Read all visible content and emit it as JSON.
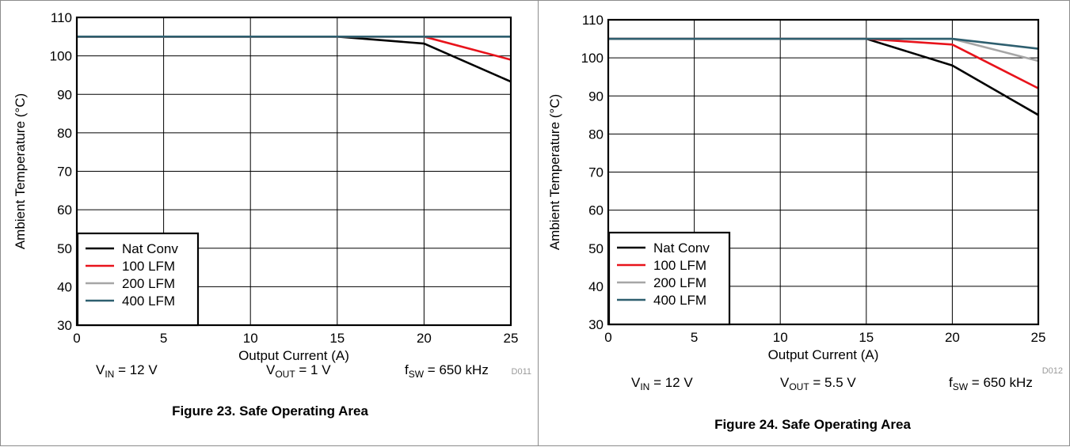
{
  "chart_data": [
    {
      "type": "line",
      "xlabel": "Output Current (A)",
      "ylabel": "Ambient Temperature (°C)",
      "xlim": [
        0,
        25
      ],
      "ylim": [
        30,
        110
      ],
      "xticks": [
        "0",
        "5",
        "10",
        "15",
        "20",
        "25"
      ],
      "yticks": [
        "30",
        "40",
        "50",
        "60",
        "70",
        "80",
        "90",
        "100",
        "110"
      ],
      "grid": true,
      "legend_position": "bottom-left",
      "series": [
        {
          "name": "Nat Conv",
          "color": "#000000",
          "x": [
            0,
            15,
            20,
            25
          ],
          "y": [
            105,
            105,
            103.2,
            93.3
          ]
        },
        {
          "name": "100 LFM",
          "color": "#e8131b",
          "x": [
            0,
            15,
            20,
            25
          ],
          "y": [
            105,
            105,
            105,
            99
          ]
        },
        {
          "name": "200 LFM",
          "color": "#a6a6a6",
          "x": [
            0,
            15,
            20,
            25
          ],
          "y": [
            105,
            105,
            105,
            105
          ]
        },
        {
          "name": "400 LFM",
          "color": "#2e5f6f",
          "x": [
            0,
            15,
            20,
            25
          ],
          "y": [
            105,
            105,
            105,
            105
          ]
        }
      ],
      "code": "D011",
      "conditions": [
        {
          "main": "V",
          "sub": "IN",
          "rest": " = 12 V"
        },
        {
          "main": "V",
          "sub": "OUT",
          "rest": " = 1 V"
        },
        {
          "main": "f",
          "sub": "SW",
          "rest": " = 650 kHz"
        }
      ],
      "caption": "Figure 23. Safe Operating Area"
    },
    {
      "type": "line",
      "xlabel": "Output Current (A)",
      "ylabel": "Ambient Temperature (°C)",
      "xlim": [
        0,
        25
      ],
      "ylim": [
        30,
        110
      ],
      "xticks": [
        "0",
        "5",
        "10",
        "15",
        "20",
        "25"
      ],
      "yticks": [
        "30",
        "40",
        "50",
        "60",
        "70",
        "80",
        "90",
        "100",
        "110"
      ],
      "grid": true,
      "legend_position": "bottom-left",
      "series": [
        {
          "name": "Nat Conv",
          "color": "#000000",
          "x": [
            0,
            15,
            20,
            25
          ],
          "y": [
            105,
            105,
            98,
            85
          ]
        },
        {
          "name": "100 LFM",
          "color": "#e8131b",
          "x": [
            0,
            15,
            20,
            25
          ],
          "y": [
            105,
            105,
            103.5,
            92
          ]
        },
        {
          "name": "200 LFM",
          "color": "#a6a6a6",
          "x": [
            0,
            15,
            20,
            25
          ],
          "y": [
            105,
            105,
            105,
            99.2
          ]
        },
        {
          "name": "400 LFM",
          "color": "#2e5f6f",
          "x": [
            0,
            15,
            20,
            25
          ],
          "y": [
            105,
            105,
            105,
            102.4
          ]
        }
      ],
      "code": "D012",
      "conditions": [
        {
          "main": "V",
          "sub": "IN",
          "rest": " = 12 V"
        },
        {
          "main": "V",
          "sub": "OUT",
          "rest": " = 5.5 V"
        },
        {
          "main": "f",
          "sub": "SW",
          "rest": " = 650 kHz"
        }
      ],
      "caption": "Figure 24. Safe Operating Area"
    }
  ]
}
